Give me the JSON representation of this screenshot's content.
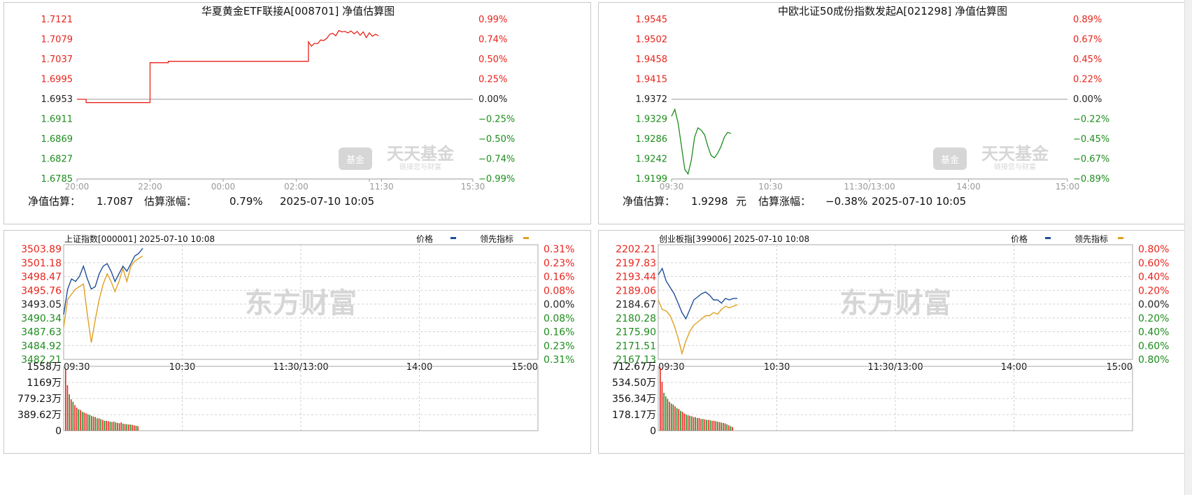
{
  "colors": {
    "up": "#e8231b",
    "down": "#1d8c1d",
    "flat": "#222222",
    "price_line": "#1f4e9c",
    "lead_line": "#e0a020",
    "grid": "#c8c8c8",
    "watermark": "#d6d6d6"
  },
  "panels": [
    {
      "id": "p1",
      "type": "nav",
      "title": "华夏黄金ETF联接A[008701]  净值估算图",
      "watermark_main": "天天基金",
      "watermark_sub": "链接您与财富",
      "watermark_badge": "基金",
      "footer": {
        "label": "净值估算：",
        "value": "1.7087",
        "change_label": "估算涨幅：",
        "change": "0.79%",
        "datetime": "2025-07-10 10:05",
        "value_color": "up"
      },
      "chart_data": {
        "type": "line",
        "y_ticks": [
          "1.7121",
          "1.7079",
          "1.7037",
          "1.6995",
          "1.6953",
          "1.6911",
          "1.6869",
          "1.6827",
          "1.6785"
        ],
        "y_ticks_right": [
          "0.99%",
          "0.74%",
          "0.50%",
          "0.25%",
          "0.00%",
          "−0.25%",
          "−0.50%",
          "−0.74%",
          "−0.99%"
        ],
        "x_ticks": [
          "20:00",
          "22:00",
          "00:00",
          "02:00",
          "",
          "11:30",
          "15:30"
        ],
        "x_tick_idx": [
          0,
          24,
          48,
          72,
          96,
          100,
          130
        ],
        "x_max": 130,
        "ylim": [
          1.6785,
          1.7121
        ],
        "base": 1.6953,
        "series": [
          {
            "color": "up",
            "x": [
              0,
              3,
              3,
              24,
              24,
              30,
              30,
              76,
              76,
              77,
              78,
              79,
              80,
              81,
              82,
              83,
              84,
              85,
              86,
              87,
              88,
              89,
              90,
              91,
              92,
              93,
              94,
              95,
              96,
              97,
              98,
              99
            ],
            "y": [
              1.6953,
              1.6953,
              1.6946,
              1.6946,
              1.703,
              1.703,
              1.7033,
              1.7033,
              1.7074,
              1.7065,
              1.7071,
              1.707,
              1.7078,
              1.7077,
              1.7081,
              1.709,
              1.7092,
              1.7087,
              1.7098,
              1.7095,
              1.7096,
              1.7093,
              1.7097,
              1.7091,
              1.7096,
              1.7088,
              1.7095,
              1.7083,
              1.7093,
              1.7086,
              1.709,
              1.7087
            ]
          }
        ]
      }
    },
    {
      "id": "p2",
      "type": "nav",
      "title": "中欧北证50成份指数发起A[021298]  净值估算图",
      "watermark_main": "天天基金",
      "watermark_sub": "链接您与财富",
      "watermark_badge": "基金",
      "footer": {
        "label": "净值估算：",
        "value": "1.9298",
        "unit": "元",
        "change_label": "估算涨幅：",
        "change": "−0.38%",
        "datetime": "2025-07-10 10:05",
        "value_color": "down"
      },
      "chart_data": {
        "type": "line",
        "y_ticks": [
          "1.9545",
          "1.9502",
          "1.9458",
          "1.9415",
          "1.9372",
          "1.9329",
          "1.9286",
          "1.9242",
          "1.9199"
        ],
        "y_ticks_right": [
          "0.89%",
          "0.67%",
          "0.45%",
          "0.22%",
          "0.00%",
          "−0.22%",
          "−0.45%",
          "−0.67%",
          "−0.89%"
        ],
        "x_ticks": [
          "09:30",
          "10:30",
          "11:30/13:00",
          "14:00",
          "15:00"
        ],
        "x_tick_idx": [
          0,
          60,
          120,
          180,
          240
        ],
        "x_max": 240,
        "ylim": [
          1.9199,
          1.9545
        ],
        "base": 1.9372,
        "series": [
          {
            "color": "down",
            "x": [
              0,
              2,
              4,
              6,
              8,
              10,
              12,
              14,
              16,
              18,
              20,
              22,
              24,
              26,
              28,
              30,
              32,
              34,
              36
            ],
            "y": [
              1.9335,
              1.935,
              1.932,
              1.927,
              1.922,
              1.921,
              1.924,
              1.929,
              1.931,
              1.9305,
              1.9295,
              1.927,
              1.925,
              1.9245,
              1.9255,
              1.927,
              1.929,
              1.93,
              1.9298
            ]
          }
        ]
      }
    },
    {
      "id": "p3",
      "type": "index",
      "title": "上证指数[000001] 2025-07-10 10:08",
      "legend_price": "价格",
      "legend_lead": "领先指标",
      "watermark_main": "东方财富",
      "chart_data": {
        "type": "line",
        "y_ticks": [
          "3503.89",
          "3501.18",
          "3498.47",
          "3495.76",
          "3493.05",
          "3490.34",
          "3487.63",
          "3484.92",
          "3482.21"
        ],
        "y_ticks_right": [
          "0.31%",
          "0.23%",
          "0.16%",
          "0.08%",
          "0.00%",
          "0.08%",
          "0.16%",
          "0.23%",
          "0.31%"
        ],
        "x_ticks": [
          "09:30",
          "10:30",
          "11:30/13:00",
          "14:00",
          "15:00"
        ],
        "x_tick_idx": [
          0,
          60,
          120,
          180,
          240
        ],
        "x_max": 240,
        "ylim": [
          3482.21,
          3503.89
        ],
        "series": [
          {
            "name": "价格",
            "color": "price_line",
            "x": [
              0,
              2,
              4,
              6,
              8,
              10,
              12,
              14,
              16,
              18,
              20,
              22,
              24,
              26,
              28,
              30,
              32,
              34,
              36,
              38,
              40
            ],
            "y": [
              3491.0,
              3496.0,
              3498.0,
              3497.5,
              3498.5,
              3500.5,
              3498.0,
              3496.0,
              3496.5,
              3499.0,
              3500.5,
              3501.0,
              3499.5,
              3497.5,
              3499.0,
              3500.5,
              3499.5,
              3501.0,
              3502.5,
              3503.0,
              3504.0
            ]
          },
          {
            "name": "领先指标",
            "color": "lead_line",
            "x": [
              0,
              2,
              4,
              6,
              8,
              10,
              12,
              14,
              16,
              18,
              20,
              22,
              24,
              26,
              28,
              30,
              32,
              34,
              36,
              38,
              40
            ],
            "y": [
              3488.5,
              3494.0,
              3495.0,
              3496.0,
              3496.5,
              3497.0,
              3491.0,
              3485.5,
              3490.0,
              3494.0,
              3497.0,
              3499.0,
              3497.5,
              3495.5,
              3497.5,
              3500.0,
              3497.5,
              3500.5,
              3501.5,
              3502.0,
              3502.5
            ]
          }
        ],
        "volume": {
          "y_ticks": [
            "1558万",
            "1169万",
            "779.23万",
            "389.62万",
            "0"
          ],
          "ymax": 1558,
          "values": [
            1480,
            1100,
            880,
            760,
            700,
            620,
            560,
            520,
            500,
            460,
            440,
            420,
            400,
            380,
            360,
            340,
            330,
            300,
            300,
            280,
            260,
            240,
            240,
            230,
            220,
            210,
            220,
            200,
            190,
            180,
            200,
            170,
            160,
            160,
            150,
            150,
            140,
            130,
            120,
            110
          ],
          "colors": [
            "up",
            "up",
            "down",
            "up",
            "down",
            "up",
            "up",
            "down",
            "up",
            "down",
            "up",
            "up",
            "down",
            "down",
            "up",
            "down",
            "up",
            "down",
            "up",
            "down",
            "up",
            "down",
            "up",
            "up",
            "down",
            "up",
            "down",
            "up",
            "down",
            "up",
            "up",
            "down",
            "up",
            "down",
            "up",
            "down",
            "up",
            "up",
            "down",
            "up"
          ]
        }
      }
    },
    {
      "id": "p4",
      "type": "index",
      "title": "创业板指[399006] 2025-07-10 10:08",
      "legend_price": "价格",
      "legend_lead": "领先指标",
      "watermark_main": "东方财富",
      "chart_data": {
        "type": "line",
        "y_ticks": [
          "2202.21",
          "2197.83",
          "2193.44",
          "2189.06",
          "2184.67",
          "2180.28",
          "2175.90",
          "2171.51",
          "2167.13"
        ],
        "y_ticks_right": [
          "0.80%",
          "0.60%",
          "0.40%",
          "0.20%",
          "0.00%",
          "0.20%",
          "0.40%",
          "0.60%",
          "0.80%"
        ],
        "x_ticks": [
          "09:30",
          "10:30",
          "11:30/13:00",
          "14:00",
          "15:00"
        ],
        "x_tick_idx": [
          0,
          60,
          120,
          180,
          240
        ],
        "x_max": 240,
        "ylim": [
          2167.13,
          2202.21
        ],
        "series": [
          {
            "name": "价格",
            "color": "price_line",
            "x": [
              0,
              2,
              4,
              6,
              8,
              10,
              12,
              14,
              16,
              18,
              20,
              22,
              24,
              26,
              28,
              30,
              32,
              34,
              36,
              38,
              40
            ],
            "y": [
              2194.0,
              2196.0,
              2192.0,
              2190.0,
              2188.0,
              2185.0,
              2182.0,
              2180.0,
              2183.0,
              2186.0,
              2187.0,
              2188.0,
              2188.5,
              2187.5,
              2186.0,
              2186.0,
              2185.0,
              2186.5,
              2186.0,
              2186.5,
              2186.5
            ]
          },
          {
            "name": "领先指标",
            "color": "lead_line",
            "x": [
              0,
              2,
              4,
              6,
              8,
              10,
              12,
              14,
              16,
              18,
              20,
              22,
              24,
              26,
              28,
              30,
              32,
              34,
              36,
              38,
              40
            ],
            "y": [
              2186.0,
              2183.0,
              2182.5,
              2181.0,
              2178.0,
              2174.0,
              2169.0,
              2173.0,
              2176.0,
              2178.0,
              2179.0,
              2180.0,
              2181.0,
              2181.0,
              2182.0,
              2181.5,
              2183.0,
              2184.0,
              2183.5,
              2184.0,
              2184.5
            ]
          }
        ],
        "volume": {
          "y_ticks": [
            "712.67万",
            "534.50万",
            "356.34万",
            "178.17万",
            "0"
          ],
          "ymax": 712.67,
          "values": [
            700,
            540,
            420,
            380,
            350,
            320,
            300,
            290,
            270,
            250,
            240,
            220,
            210,
            190,
            180,
            170,
            165,
            160,
            150,
            150,
            140,
            140,
            130,
            130,
            125,
            120,
            120,
            115,
            110,
            110,
            105,
            100,
            95,
            90,
            85,
            80,
            70,
            60,
            50,
            40
          ],
          "colors": [
            "up",
            "up",
            "down",
            "down",
            "up",
            "down",
            "up",
            "down",
            "up",
            "down",
            "up",
            "down",
            "up",
            "up",
            "down",
            "up",
            "down",
            "up",
            "down",
            "up",
            "down",
            "up",
            "up",
            "down",
            "up",
            "down",
            "up",
            "down",
            "up",
            "up",
            "down",
            "up",
            "down",
            "up",
            "down",
            "up",
            "down",
            "up",
            "down",
            "up"
          ]
        }
      }
    }
  ]
}
